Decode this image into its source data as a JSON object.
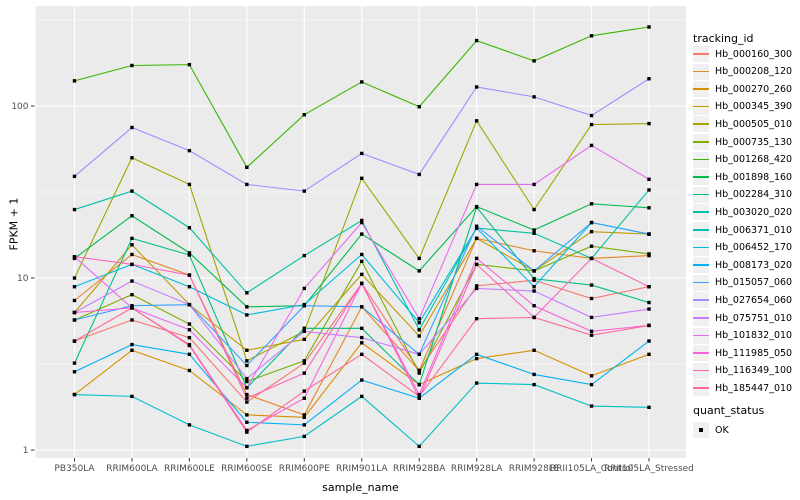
{
  "figure": {
    "bg": "#FFFFFF",
    "panel_bg": "#EBEBEB",
    "grid_color": "#FFFFFF",
    "point_color": "#000000",
    "tick_color": "#333333",
    "tick_label_color": "#4D4D4D",
    "legend_key_bg": "#F0F0F0"
  },
  "chart_data": {
    "type": "line",
    "title": "",
    "xlabel": "sample_name",
    "ylabel": "FPKM + 1",
    "yscale": "log10",
    "ylim": [
      1,
      400
    ],
    "yticks": [
      1,
      10,
      100
    ],
    "ytick_labels": [
      "1",
      "10",
      "100"
    ],
    "grid": true,
    "legend_position": "right",
    "legend_title": "tracking_id",
    "point_shape": "filled-square",
    "categories": [
      "PB350LA",
      "RRIM600LA",
      "RRIM600LE",
      "RRIM600SE",
      "RRIM600PE",
      "RRIM901LA",
      "RRIM928BA",
      "RRIM928LA",
      "RRIM928LE",
      "RRII105LA_Control",
      "RRII105LA_Stressed"
    ],
    "series": [
      {
        "name": "Hb_000160_300",
        "color": "#F8766D",
        "values": [
          4.3,
          5.7,
          4.5,
          1.9,
          3.2,
          9.3,
          2.9,
          9.0,
          9.7,
          7.6,
          8.9
        ]
      },
      {
        "name": "Hb_000208_120",
        "color": "#E88526",
        "values": [
          7.4,
          13.7,
          10.4,
          2.1,
          1.6,
          6.8,
          2.9,
          17,
          14.4,
          13,
          13.5
        ]
      },
      {
        "name": "Hb_000270_260",
        "color": "#D89000",
        "values": [
          2.1,
          3.8,
          2.9,
          1.6,
          1.55,
          4.2,
          2.4,
          3.4,
          3.8,
          2.7,
          3.6
        ]
      },
      {
        "name": "Hb_000345_390",
        "color": "#C09B00",
        "values": [
          6.3,
          15.6,
          7.0,
          3.8,
          4.4,
          10.5,
          4.6,
          17,
          11,
          18.6,
          18
        ]
      },
      {
        "name": "Hb_000505_010",
        "color": "#A3A500",
        "values": [
          10,
          50,
          35,
          3.3,
          4.9,
          38,
          13,
          82,
          25,
          78,
          79
        ]
      },
      {
        "name": "Hb_000735_130",
        "color": "#7CAE00",
        "values": [
          5.7,
          8.0,
          5.4,
          2.5,
          3.3,
          12.5,
          2.8,
          12,
          11,
          15.3,
          13.8
        ]
      },
      {
        "name": "Hb_001268_420",
        "color": "#39B600",
        "values": [
          140,
          172,
          174,
          44,
          89,
          138,
          99,
          240,
          183,
          256,
          288
        ]
      },
      {
        "name": "Hb_001898_160",
        "color": "#00BB4E",
        "values": [
          13,
          23,
          14,
          6.8,
          6.9,
          18,
          11,
          26,
          19,
          27,
          25.6
        ]
      },
      {
        "name": "Hb_002284_310",
        "color": "#00BF7D",
        "values": [
          3.2,
          17,
          13.6,
          2.3,
          5.1,
          5.1,
          2.4,
          25.8,
          9.9,
          9.1,
          7.2
        ]
      },
      {
        "name": "Hb_003020_020",
        "color": "#00C1A3",
        "values": [
          25,
          32,
          19.6,
          8.2,
          13.5,
          21.6,
          5.0,
          19.5,
          18.2,
          13,
          32.5
        ]
      },
      {
        "name": "Hb_006371_010",
        "color": "#00BFC4",
        "values": [
          2.1,
          2.05,
          1.4,
          1.05,
          1.2,
          2.05,
          1.05,
          2.45,
          2.4,
          1.8,
          1.77
        ]
      },
      {
        "name": "Hb_006452_170",
        "color": "#00BAE0",
        "values": [
          8.9,
          12,
          8.9,
          6.1,
          7.0,
          13.7,
          5.5,
          19.5,
          8.9,
          21,
          18
        ]
      },
      {
        "name": "Hb_008173_020",
        "color": "#00B0F6",
        "values": [
          2.85,
          4.1,
          3.6,
          1.45,
          1.4,
          2.55,
          2.0,
          3.6,
          2.75,
          2.4,
          4.3
        ]
      },
      {
        "name": "Hb_015057_060",
        "color": "#35A2FF",
        "values": [
          5.7,
          6.9,
          7.0,
          3.1,
          6.9,
          6.8,
          3.6,
          20,
          11,
          21,
          18
        ]
      },
      {
        "name": "Hb_027654_060",
        "color": "#9590FF",
        "values": [
          39,
          75,
          55,
          35,
          32,
          53,
          40,
          129,
          113,
          88,
          144
        ]
      },
      {
        "name": "Hb_075751_010",
        "color": "#C77CFF",
        "values": [
          6.3,
          9.6,
          7.0,
          2.6,
          4.9,
          4.5,
          3.6,
          8.7,
          8.4,
          5.9,
          6.6
        ]
      },
      {
        "name": "Hb_101832_010",
        "color": "#E76BF3",
        "values": [
          13.3,
          6.7,
          5.0,
          2.3,
          8.7,
          21,
          5.8,
          35,
          35,
          59,
          37.5
        ]
      },
      {
        "name": "Hb_111985_050",
        "color": "#FA62DB",
        "values": [
          6.3,
          6.7,
          4.1,
          1.3,
          2.0,
          9.3,
          2.1,
          13,
          6.9,
          4.9,
          5.3
        ]
      },
      {
        "name": "Hb_116349_100",
        "color": "#FF62BC",
        "values": [
          13.3,
          12,
          10.4,
          2.0,
          2.8,
          9.3,
          2.0,
          12,
          5.9,
          13,
          8.9
        ]
      },
      {
        "name": "Hb_185447_010",
        "color": "#FF6A98",
        "values": [
          4.3,
          6.7,
          4.05,
          1.27,
          2.2,
          3.6,
          2.05,
          5.8,
          5.9,
          4.65,
          5.3
        ]
      }
    ],
    "quant_status": {
      "title": "quant_status",
      "items": [
        {
          "label": "OK"
        }
      ]
    }
  }
}
